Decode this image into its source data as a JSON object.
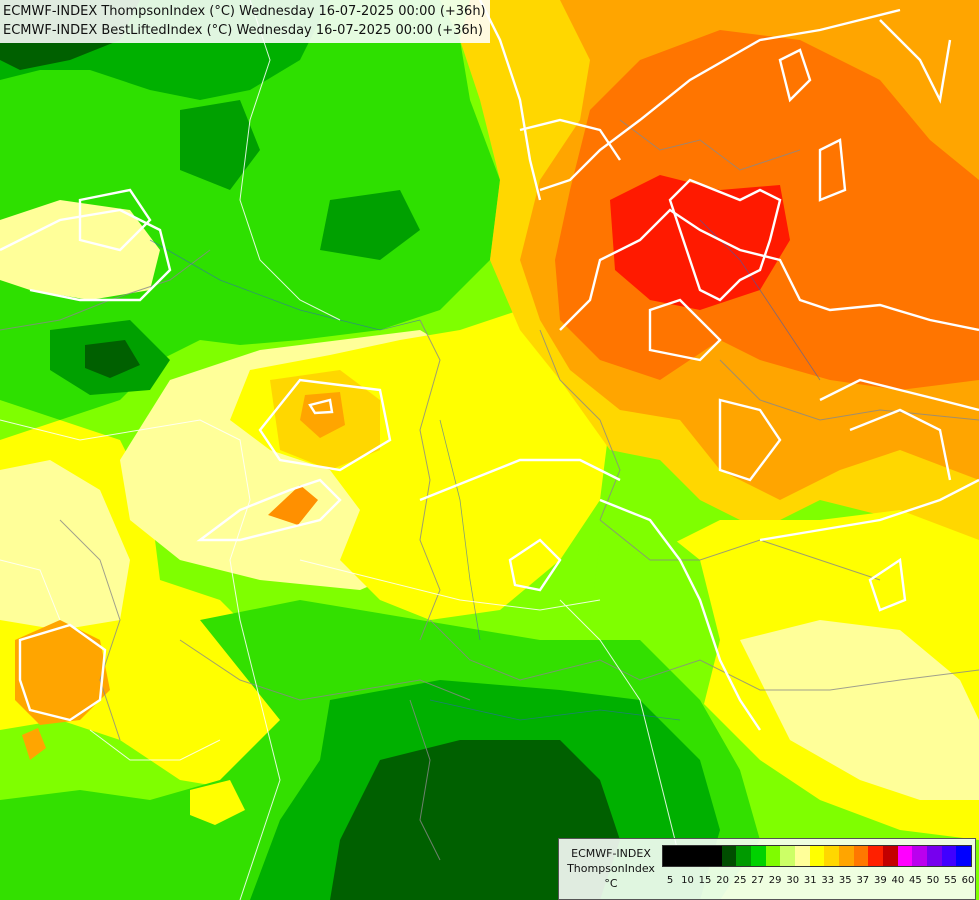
{
  "header": {
    "line1": "ECMWF-INDEX ThompsonIndex (°C) Wednesday 16-07-2025 00:00 (+36h)",
    "line2": "ECMWF-INDEX BestLiftedIndex (°C) Wednesday 16-07-2025 00:00 (+36h)"
  },
  "legend": {
    "title": "ECMWF-INDEX",
    "variable": "ThompsonIndex",
    "unit": "°C",
    "colors": [
      "#000000",
      "#000000",
      "#000000",
      "#000000",
      "#004d00",
      "#009a00",
      "#00d200",
      "#7ffc00",
      "#ccff66",
      "#ffff99",
      "#ffff00",
      "#ffd700",
      "#ffa500",
      "#ff7800",
      "#ff2000",
      "#c30000",
      "#ff00ff",
      "#bb00ee",
      "#7700ee",
      "#4000ff",
      "#0000ff"
    ],
    "ticks": [
      "5",
      "10",
      "15",
      "20",
      "25",
      "27",
      "29",
      "30",
      "31",
      "33",
      "35",
      "37",
      "39",
      "40",
      "45",
      "50",
      "55",
      "60"
    ]
  },
  "colors": {
    "dark_green": "#006000",
    "green": "#00bf00",
    "bright_green": "#33e000",
    "lime": "#7fff00",
    "light_yellow": "#ffff99",
    "yellow": "#ffff00",
    "gold": "#ffd700",
    "orange": "#ffa500",
    "dark_orange": "#ff7500",
    "red": "#ff1a00",
    "contour": "#ffffff",
    "border": "#808080"
  }
}
